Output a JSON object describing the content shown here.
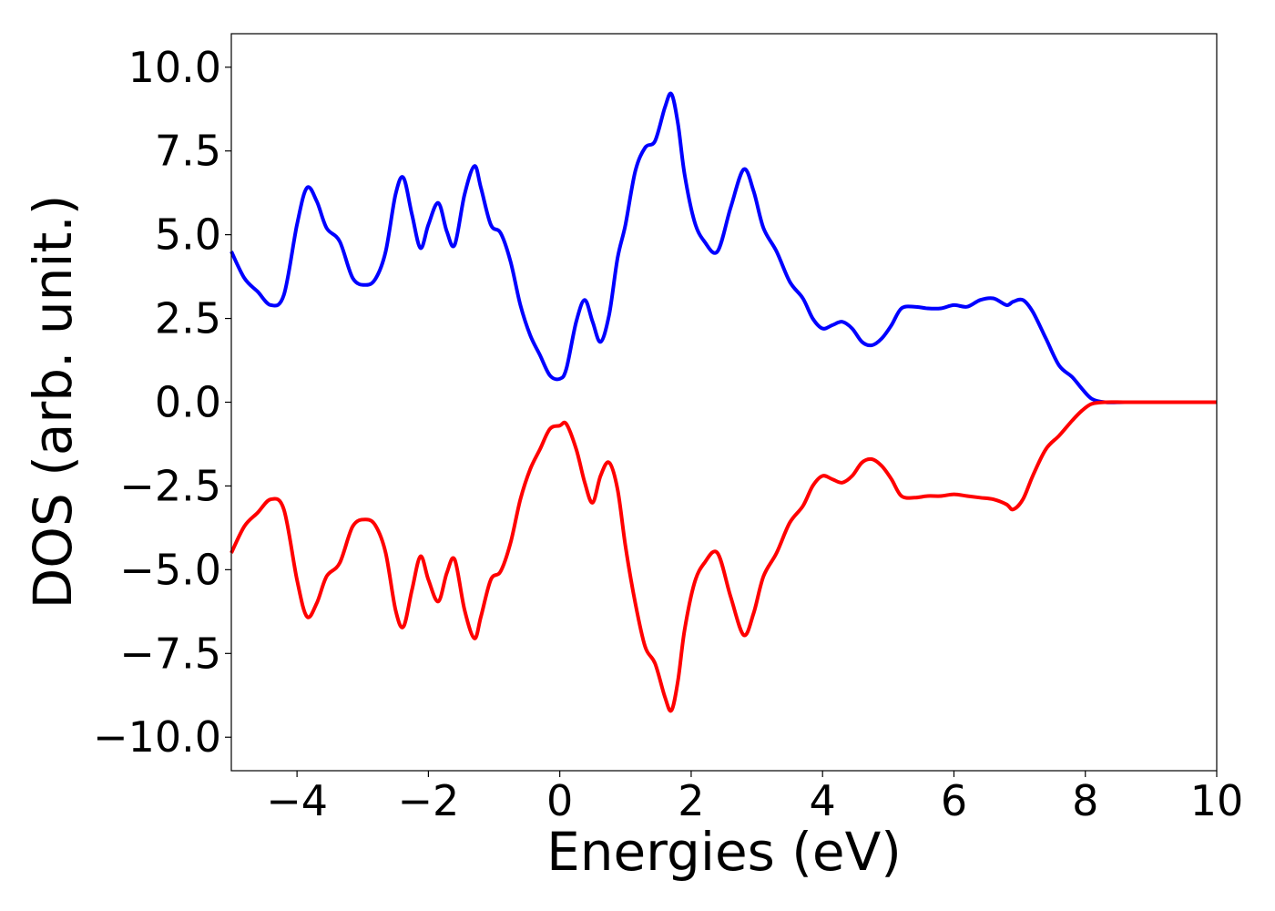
{
  "chart_data": {
    "type": "line",
    "title": "",
    "xlabel": "Energies (eV)",
    "ylabel": "DOS (arb. unit.)",
    "xlim": [
      -5,
      10
    ],
    "ylim": [
      -11,
      11
    ],
    "xticks": [
      -4,
      -2,
      0,
      2,
      4,
      6,
      8,
      10
    ],
    "xtick_labels": [
      "−4",
      "−2",
      "0",
      "2",
      "4",
      "6",
      "8",
      "10"
    ],
    "yticks": [
      10,
      7.5,
      5,
      2.5,
      0,
      -2.5,
      -5,
      -7.5,
      -10
    ],
    "ytick_labels": [
      "10.0",
      "7.5",
      "5.0",
      "2.5",
      "0.0",
      "−2.5",
      "−5.0",
      "−7.5",
      "−10.0"
    ],
    "grid": false,
    "legend": "none",
    "series": [
      {
        "color": "#0000ff",
        "x": [
          -5.0,
          -4.8,
          -4.6,
          -4.4,
          -4.2,
          -4.0,
          -3.85,
          -3.7,
          -3.55,
          -3.35,
          -3.15,
          -2.95,
          -2.8,
          -2.65,
          -2.5,
          -2.38,
          -2.25,
          -2.12,
          -2.0,
          -1.85,
          -1.72,
          -1.6,
          -1.45,
          -1.3,
          -1.2,
          -1.05,
          -0.9,
          -0.75,
          -0.6,
          -0.45,
          -0.3,
          -0.15,
          0.0,
          0.1,
          0.25,
          0.38,
          0.5,
          0.62,
          0.75,
          0.88,
          1.0,
          1.15,
          1.3,
          1.45,
          1.6,
          1.7,
          1.8,
          1.9,
          2.05,
          2.2,
          2.4,
          2.6,
          2.8,
          2.95,
          3.1,
          3.3,
          3.5,
          3.7,
          3.85,
          4.0,
          4.15,
          4.3,
          4.45,
          4.6,
          4.75,
          4.9,
          5.05,
          5.2,
          5.4,
          5.6,
          5.8,
          6.0,
          6.2,
          6.4,
          6.6,
          6.8,
          6.9,
          7.05,
          7.2,
          7.4,
          7.6,
          7.8,
          7.95,
          8.1,
          8.3,
          8.6,
          9.0,
          9.5,
          10.0
        ],
        "values": [
          4.5,
          3.7,
          3.3,
          2.9,
          3.2,
          5.3,
          6.4,
          6.0,
          5.2,
          4.8,
          3.7,
          3.5,
          3.7,
          4.5,
          6.2,
          6.7,
          5.6,
          4.6,
          5.3,
          5.95,
          5.1,
          4.7,
          6.2,
          7.05,
          6.4,
          5.3,
          5.05,
          4.2,
          2.9,
          2.0,
          1.4,
          0.8,
          0.7,
          1.0,
          2.4,
          3.05,
          2.4,
          1.8,
          2.6,
          4.3,
          5.3,
          6.9,
          7.6,
          7.8,
          8.8,
          9.2,
          8.3,
          6.8,
          5.4,
          4.8,
          4.5,
          5.8,
          6.95,
          6.3,
          5.2,
          4.5,
          3.6,
          3.1,
          2.5,
          2.2,
          2.3,
          2.4,
          2.2,
          1.8,
          1.7,
          1.9,
          2.3,
          2.8,
          2.85,
          2.8,
          2.8,
          2.9,
          2.85,
          3.05,
          3.1,
          2.9,
          3.0,
          3.05,
          2.7,
          1.9,
          1.1,
          0.75,
          0.4,
          0.1,
          0.0,
          0.0,
          0.0,
          0.0,
          0.0
        ]
      },
      {
        "color": "#ff0000",
        "x": [
          -5.0,
          -4.8,
          -4.6,
          -4.4,
          -4.2,
          -4.0,
          -3.85,
          -3.7,
          -3.55,
          -3.35,
          -3.15,
          -2.95,
          -2.8,
          -2.65,
          -2.5,
          -2.38,
          -2.25,
          -2.12,
          -2.0,
          -1.85,
          -1.72,
          -1.6,
          -1.45,
          -1.3,
          -1.2,
          -1.05,
          -0.9,
          -0.75,
          -0.6,
          -0.45,
          -0.3,
          -0.15,
          0.0,
          0.1,
          0.25,
          0.38,
          0.5,
          0.62,
          0.75,
          0.88,
          1.0,
          1.15,
          1.3,
          1.45,
          1.6,
          1.7,
          1.8,
          1.9,
          2.05,
          2.2,
          2.4,
          2.6,
          2.8,
          2.95,
          3.1,
          3.3,
          3.5,
          3.7,
          3.85,
          4.0,
          4.15,
          4.3,
          4.45,
          4.6,
          4.75,
          4.9,
          5.05,
          5.2,
          5.4,
          5.6,
          5.8,
          6.0,
          6.2,
          6.4,
          6.6,
          6.8,
          6.9,
          7.05,
          7.2,
          7.4,
          7.6,
          7.8,
          7.95,
          8.1,
          8.3,
          8.6,
          9.0,
          9.5,
          10.0
        ],
        "values": [
          -4.5,
          -3.7,
          -3.3,
          -2.9,
          -3.2,
          -5.3,
          -6.4,
          -6.0,
          -5.2,
          -4.8,
          -3.7,
          -3.5,
          -3.7,
          -4.5,
          -6.2,
          -6.7,
          -5.6,
          -4.6,
          -5.3,
          -5.95,
          -5.1,
          -4.7,
          -6.2,
          -7.05,
          -6.4,
          -5.3,
          -5.05,
          -4.2,
          -2.9,
          -2.0,
          -1.4,
          -0.8,
          -0.7,
          -0.65,
          -1.4,
          -2.4,
          -3.0,
          -2.2,
          -1.8,
          -2.6,
          -4.3,
          -6.0,
          -7.3,
          -7.8,
          -8.8,
          -9.2,
          -8.3,
          -6.8,
          -5.4,
          -4.8,
          -4.5,
          -5.8,
          -6.95,
          -6.3,
          -5.2,
          -4.5,
          -3.6,
          -3.1,
          -2.5,
          -2.2,
          -2.3,
          -2.4,
          -2.2,
          -1.8,
          -1.7,
          -1.9,
          -2.3,
          -2.8,
          -2.85,
          -2.8,
          -2.8,
          -2.75,
          -2.8,
          -2.85,
          -2.9,
          -3.05,
          -3.2,
          -2.9,
          -2.2,
          -1.4,
          -1.0,
          -0.55,
          -0.25,
          -0.05,
          0.0,
          0.0,
          0.0,
          0.0,
          0.0
        ]
      }
    ]
  }
}
